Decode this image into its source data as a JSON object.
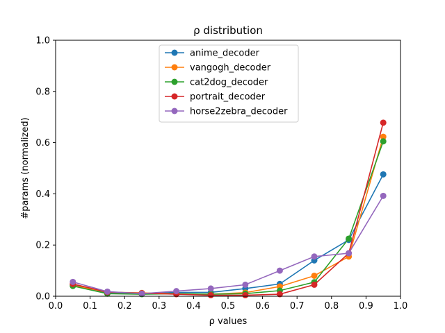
{
  "chart_data": {
    "type": "line",
    "title": "ρ distribution",
    "xlabel": "ρ values",
    "ylabel": "#params (normalized)",
    "xlim": [
      0.0,
      1.0
    ],
    "ylim": [
      0.0,
      1.0
    ],
    "xticks": [
      "0.0",
      "0.1",
      "0.2",
      "0.3",
      "0.4",
      "0.5",
      "0.6",
      "0.7",
      "0.8",
      "0.9",
      "1.0"
    ],
    "yticks": [
      "0.0",
      "0.2",
      "0.4",
      "0.6",
      "0.8",
      "1.0"
    ],
    "grid": false,
    "legend_position": "top-center",
    "x": [
      0.05,
      0.15,
      0.25,
      0.35,
      0.45,
      0.55,
      0.65,
      0.75,
      0.85,
      0.95
    ],
    "series": [
      {
        "name": "anime_decoder",
        "color": "#1f77b4",
        "values": [
          0.045,
          0.012,
          0.01,
          0.015,
          0.015,
          0.03,
          0.048,
          0.14,
          0.22,
          0.476
        ]
      },
      {
        "name": "vangogh_decoder",
        "color": "#ff7f0e",
        "values": [
          0.042,
          0.016,
          0.013,
          0.01,
          0.008,
          0.014,
          0.038,
          0.08,
          0.155,
          0.623
        ]
      },
      {
        "name": "cat2dog_decoder",
        "color": "#2ca02c",
        "values": [
          0.04,
          0.01,
          0.008,
          0.01,
          0.008,
          0.01,
          0.022,
          0.055,
          0.225,
          0.605
        ]
      },
      {
        "name": "portrait_decoder",
        "color": "#d62728",
        "values": [
          0.048,
          0.016,
          0.012,
          0.008,
          0.004,
          0.004,
          0.008,
          0.045,
          0.168,
          0.678
        ]
      },
      {
        "name": "horse2zebra_decoder",
        "color": "#9467bd",
        "values": [
          0.056,
          0.018,
          0.01,
          0.02,
          0.03,
          0.045,
          0.1,
          0.155,
          0.168,
          0.392
        ]
      }
    ]
  }
}
